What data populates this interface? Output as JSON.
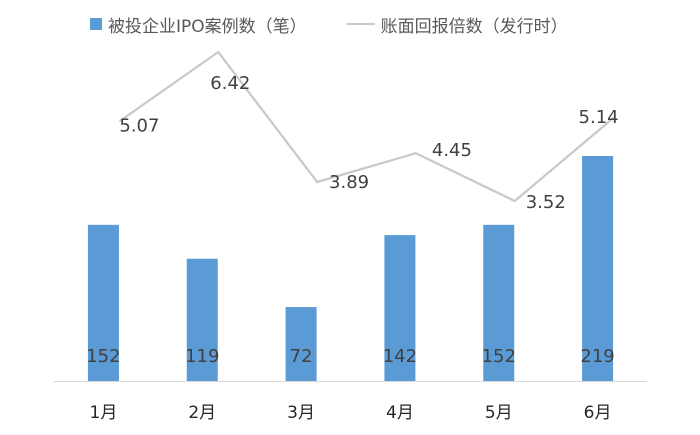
{
  "chart_data": {
    "type": "bar",
    "categories": [
      "1月",
      "2月",
      "3月",
      "4月",
      "5月",
      "6月"
    ],
    "series": [
      {
        "name": "被投企业IPO案例数（笔）",
        "type": "bar",
        "axis": "left",
        "color": "#5b9bd5",
        "values": [
          152,
          119,
          72,
          142,
          152,
          219
        ]
      },
      {
        "name": "账面回报倍数（发行时）",
        "type": "line",
        "axis": "right",
        "color": "#c9c9c9",
        "values": [
          5.07,
          6.42,
          3.89,
          4.45,
          3.52,
          5.14
        ]
      }
    ],
    "title": "",
    "xlabel": "",
    "ylabel": "",
    "ylim": [
      0,
      300
    ],
    "y2lim": [
      0,
      7
    ],
    "grid": false,
    "legend": "top"
  }
}
